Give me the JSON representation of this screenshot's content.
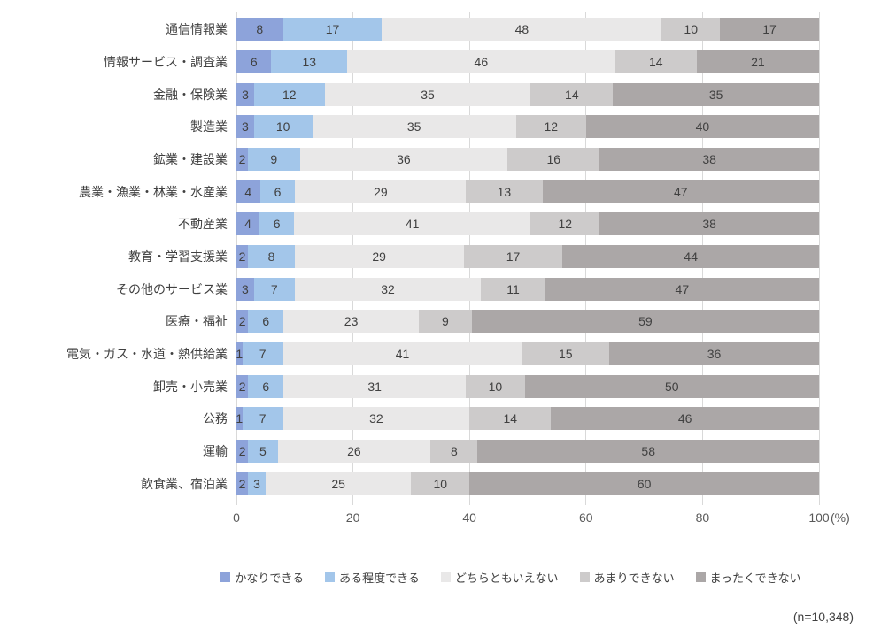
{
  "chart_data": {
    "type": "bar",
    "variant": "horizontal-stacked-100",
    "categories": [
      "通信情報業",
      "情報サービス・調査業",
      "金融・保険業",
      "製造業",
      "鉱業・建設業",
      "農業・漁業・林業・水産業",
      "不動産業",
      "教育・学習支援業",
      "その他のサービス業",
      "医療・福祉",
      "電気・ガス・水道・熱供給業",
      "卸売・小売業",
      "公務",
      "運輸",
      "飲食業、宿泊業"
    ],
    "series": [
      {
        "name": "かなりできる",
        "color": "#8da3da",
        "values": [
          8,
          6,
          3,
          3,
          2,
          4,
          4,
          2,
          3,
          2,
          1,
          2,
          1,
          2,
          2
        ]
      },
      {
        "name": "ある程度できる",
        "color": "#a3c6ea",
        "values": [
          17,
          13,
          12,
          10,
          9,
          6,
          6,
          8,
          7,
          6,
          7,
          6,
          7,
          5,
          3
        ]
      },
      {
        "name": "どちらともいえない",
        "color": "#e9e8e8",
        "values": [
          48,
          46,
          35,
          35,
          36,
          29,
          41,
          29,
          32,
          23,
          41,
          31,
          32,
          26,
          25
        ]
      },
      {
        "name": "あまりできない",
        "color": "#cdcbcb",
        "values": [
          10,
          14,
          14,
          12,
          16,
          13,
          12,
          17,
          11,
          9,
          15,
          10,
          14,
          8,
          10
        ]
      },
      {
        "name": "まったくできない",
        "color": "#aba7a7",
        "values": [
          17,
          21,
          35,
          40,
          38,
          47,
          38,
          44,
          47,
          59,
          36,
          50,
          46,
          58,
          60
        ]
      }
    ],
    "x_ticks": [
      "0",
      "20",
      "40",
      "60",
      "80",
      "100"
    ],
    "x_axis_unit": "(%)",
    "xlim": [
      0,
      100
    ],
    "grid": true,
    "gridline_color": "#d9d9d9",
    "legend_position": "bottom",
    "note": "(n=10,348)"
  }
}
